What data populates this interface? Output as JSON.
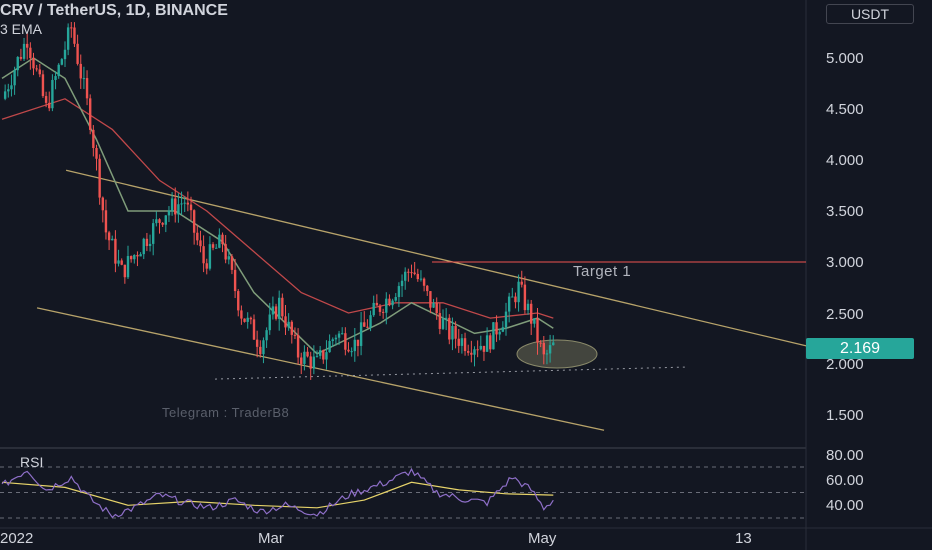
{
  "header": {
    "title": "CRV / TetherUS, 1D, BINANCE",
    "indicator": "3 EMA",
    "currency_label": "USDT"
  },
  "price_axis": {
    "labels": [
      "5.000",
      "4.500",
      "4.000",
      "3.500",
      "3.000",
      "2.500",
      "2.000",
      "1.500"
    ],
    "last_price": "2.169"
  },
  "rsi_panel": {
    "title": "RSI",
    "labels": [
      "80.00",
      "60.00",
      "40.00"
    ]
  },
  "time_axis": {
    "labels": [
      "2022",
      "Mar",
      "May",
      "13"
    ]
  },
  "annotations": {
    "target": "Target 1",
    "telegram": "Telegram : TraderB8"
  },
  "colors": {
    "background": "#131722",
    "up": "#26a69a",
    "down": "#ef5350",
    "channel": "#b7a36a",
    "ema_fast": "#7f9c7a",
    "ema_slow": "#c0484a",
    "rsi": "#8e6fc8",
    "rsi_ma": "#e6d36a"
  },
  "chart_data": {
    "type": "candlestick",
    "symbol": "CRV / TetherUS",
    "interval": "1D",
    "exchange": "BINANCE",
    "y_range": [
      1.3,
      5.5
    ],
    "anchors": [
      {
        "d": 0,
        "p": 4.6
      },
      {
        "d": 8,
        "p": 5.2
      },
      {
        "d": 14,
        "p": 4.5
      },
      {
        "d": 18,
        "p": 4.9
      },
      {
        "d": 22,
        "p": 5.3
      },
      {
        "d": 28,
        "p": 4.4
      },
      {
        "d": 33,
        "p": 3.3
      },
      {
        "d": 38,
        "p": 2.9
      },
      {
        "d": 45,
        "p": 3.2
      },
      {
        "d": 52,
        "p": 3.5
      },
      {
        "d": 58,
        "p": 3.6
      },
      {
        "d": 64,
        "p": 3.0
      },
      {
        "d": 70,
        "p": 3.2
      },
      {
        "d": 76,
        "p": 2.5
      },
      {
        "d": 82,
        "p": 2.2
      },
      {
        "d": 88,
        "p": 2.6
      },
      {
        "d": 94,
        "p": 2.1
      },
      {
        "d": 100,
        "p": 2.0
      },
      {
        "d": 106,
        "p": 2.3
      },
      {
        "d": 112,
        "p": 2.2
      },
      {
        "d": 118,
        "p": 2.5
      },
      {
        "d": 124,
        "p": 2.7
      },
      {
        "d": 130,
        "p": 2.95
      },
      {
        "d": 136,
        "p": 2.6
      },
      {
        "d": 142,
        "p": 2.3
      },
      {
        "d": 148,
        "p": 2.2
      },
      {
        "d": 154,
        "p": 2.2
      },
      {
        "d": 160,
        "p": 2.5
      },
      {
        "d": 164,
        "p": 2.75
      },
      {
        "d": 168,
        "p": 2.45
      },
      {
        "d": 172,
        "p": 2.05
      },
      {
        "d": 175,
        "p": 2.17
      }
    ],
    "ema_fast_anchors": [
      {
        "d": 0,
        "p": 4.8
      },
      {
        "d": 10,
        "p": 5.0
      },
      {
        "d": 20,
        "p": 4.8
      },
      {
        "d": 30,
        "p": 4.2
      },
      {
        "d": 40,
        "p": 3.5
      },
      {
        "d": 55,
        "p": 3.5
      },
      {
        "d": 70,
        "p": 3.2
      },
      {
        "d": 80,
        "p": 2.7
      },
      {
        "d": 90,
        "p": 2.4
      },
      {
        "d": 100,
        "p": 2.1
      },
      {
        "d": 110,
        "p": 2.25
      },
      {
        "d": 120,
        "p": 2.4
      },
      {
        "d": 130,
        "p": 2.6
      },
      {
        "d": 140,
        "p": 2.45
      },
      {
        "d": 150,
        "p": 2.3
      },
      {
        "d": 160,
        "p": 2.35
      },
      {
        "d": 170,
        "p": 2.45
      },
      {
        "d": 175,
        "p": 2.35
      }
    ],
    "ema_slow_anchors": [
      {
        "d": 0,
        "p": 4.4
      },
      {
        "d": 20,
        "p": 4.6
      },
      {
        "d": 35,
        "p": 4.3
      },
      {
        "d": 50,
        "p": 3.8
      },
      {
        "d": 65,
        "p": 3.5
      },
      {
        "d": 80,
        "p": 3.1
      },
      {
        "d": 95,
        "p": 2.7
      },
      {
        "d": 110,
        "p": 2.5
      },
      {
        "d": 125,
        "p": 2.6
      },
      {
        "d": 140,
        "p": 2.6
      },
      {
        "d": 155,
        "p": 2.45
      },
      {
        "d": 170,
        "p": 2.5
      },
      {
        "d": 175,
        "p": 2.45
      }
    ],
    "channel_upper": [
      {
        "d": 14,
        "p": 3.9
      },
      {
        "d": 250,
        "p": 2.17
      }
    ],
    "channel_lower": [
      {
        "d": 7,
        "p": 2.55
      },
      {
        "d": 187,
        "p": 1.35
      }
    ],
    "support_level": 1.96,
    "target_level": 3.0,
    "rsi_range": [
      20,
      90
    ],
    "rsi_levels": [
      70,
      50,
      30
    ],
    "rsi_anchors": [
      {
        "d": 0,
        "p": 55
      },
      {
        "d": 8,
        "p": 68
      },
      {
        "d": 14,
        "p": 52
      },
      {
        "d": 22,
        "p": 62
      },
      {
        "d": 28,
        "p": 45
      },
      {
        "d": 35,
        "p": 32
      },
      {
        "d": 42,
        "p": 38
      },
      {
        "d": 50,
        "p": 48
      },
      {
        "d": 58,
        "p": 42
      },
      {
        "d": 66,
        "p": 38
      },
      {
        "d": 74,
        "p": 44
      },
      {
        "d": 82,
        "p": 35
      },
      {
        "d": 90,
        "p": 40
      },
      {
        "d": 100,
        "p": 33
      },
      {
        "d": 110,
        "p": 48
      },
      {
        "d": 122,
        "p": 58
      },
      {
        "d": 130,
        "p": 67
      },
      {
        "d": 138,
        "p": 50
      },
      {
        "d": 146,
        "p": 45
      },
      {
        "d": 154,
        "p": 42
      },
      {
        "d": 162,
        "p": 62
      },
      {
        "d": 168,
        "p": 52
      },
      {
        "d": 172,
        "p": 38
      },
      {
        "d": 175,
        "p": 44
      }
    ],
    "rsi_ma_anchors": [
      {
        "d": 0,
        "p": 58
      },
      {
        "d": 20,
        "p": 54
      },
      {
        "d": 40,
        "p": 40
      },
      {
        "d": 60,
        "p": 43
      },
      {
        "d": 80,
        "p": 40
      },
      {
        "d": 100,
        "p": 38
      },
      {
        "d": 115,
        "p": 44
      },
      {
        "d": 130,
        "p": 58
      },
      {
        "d": 145,
        "p": 52
      },
      {
        "d": 160,
        "p": 49
      },
      {
        "d": 175,
        "p": 48
      }
    ]
  }
}
